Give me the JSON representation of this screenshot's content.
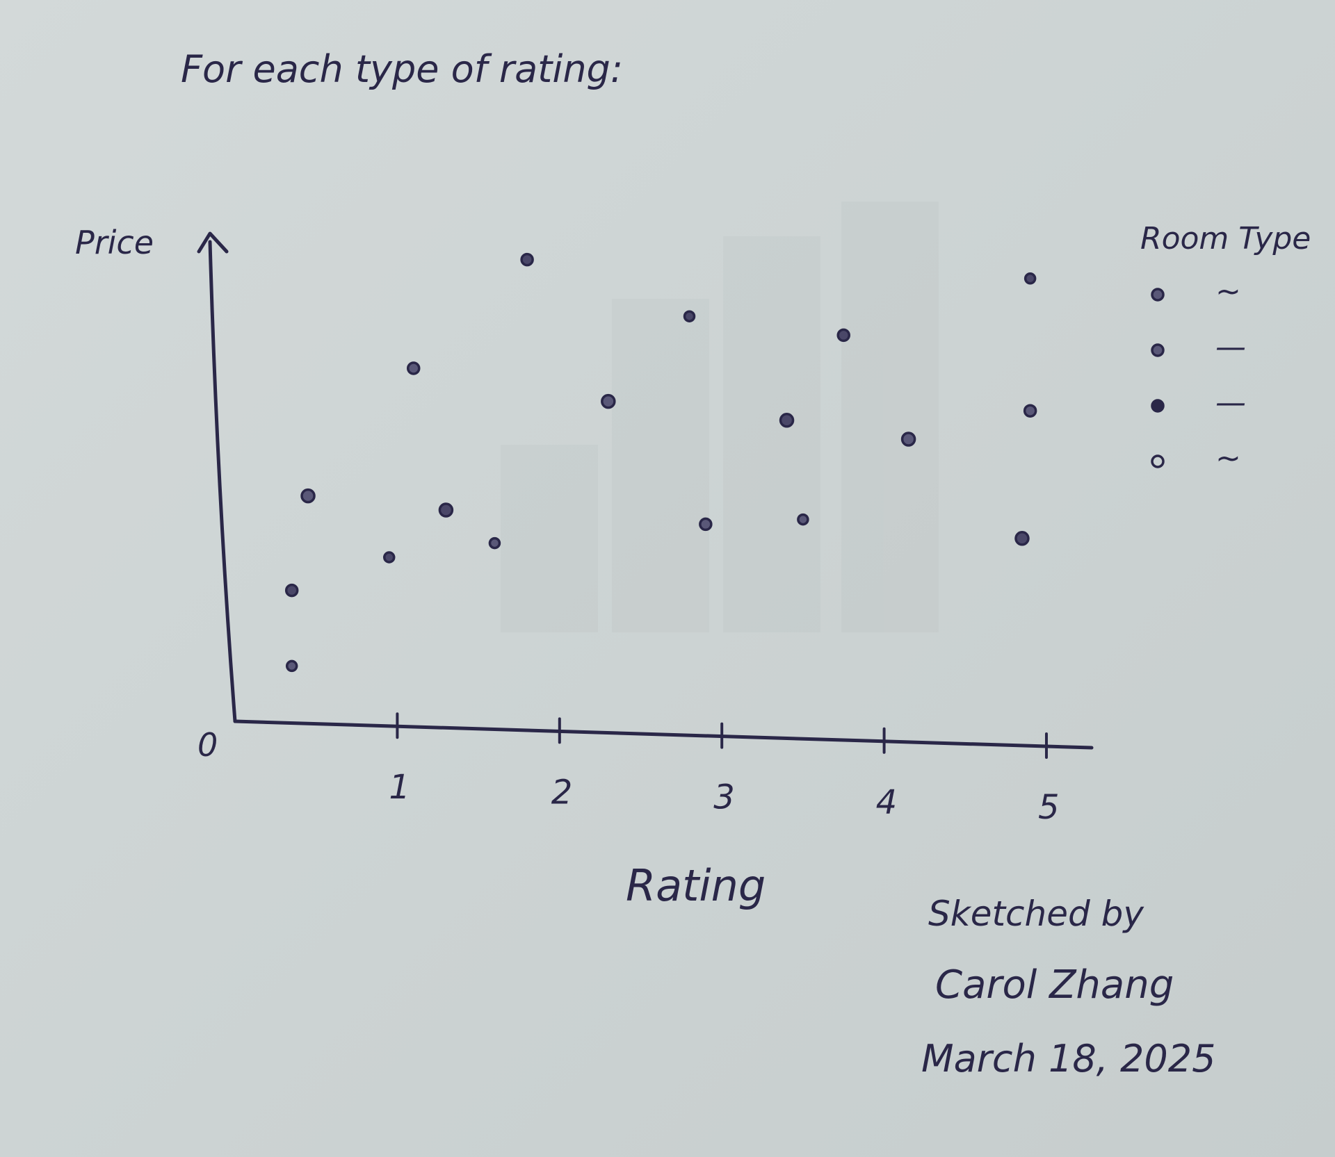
{
  "chart_data": {
    "type": "scatter",
    "title": "For each type of rating:",
    "xlabel": "Rating",
    "ylabel": "Price",
    "y_origin_label": "0",
    "xlim": [
      0,
      5.3
    ],
    "ylim": [
      0,
      10
    ],
    "x_ticks": [
      1,
      2,
      3,
      4,
      5
    ],
    "x_tick_labels": [
      "1",
      "2",
      "3",
      "4",
      "5"
    ],
    "y_ticks": [],
    "grid": false,
    "legend": {
      "title": "Room Type",
      "position": "top-right",
      "entries": [
        "~",
        "—",
        "—",
        "~"
      ]
    },
    "points": [
      {
        "x": 0.35,
        "y": 1.2
      },
      {
        "x": 0.35,
        "y": 2.8
      },
      {
        "x": 0.45,
        "y": 4.8
      },
      {
        "x": 0.95,
        "y": 3.5
      },
      {
        "x": 1.1,
        "y": 7.5
      },
      {
        "x": 1.3,
        "y": 4.5
      },
      {
        "x": 1.6,
        "y": 3.8
      },
      {
        "x": 1.8,
        "y": 9.8
      },
      {
        "x": 2.3,
        "y": 6.8
      },
      {
        "x": 2.8,
        "y": 8.6
      },
      {
        "x": 2.9,
        "y": 4.2
      },
      {
        "x": 3.4,
        "y": 6.4
      },
      {
        "x": 3.5,
        "y": 4.3
      },
      {
        "x": 3.75,
        "y": 8.2
      },
      {
        "x": 4.15,
        "y": 6.0
      },
      {
        "x": 4.9,
        "y": 9.4
      },
      {
        "x": 4.9,
        "y": 6.6
      },
      {
        "x": 4.85,
        "y": 3.9
      }
    ]
  },
  "signature": {
    "line1": "Sketched by",
    "line2": "Carol Zhang",
    "line3": "March 18, 2025"
  }
}
